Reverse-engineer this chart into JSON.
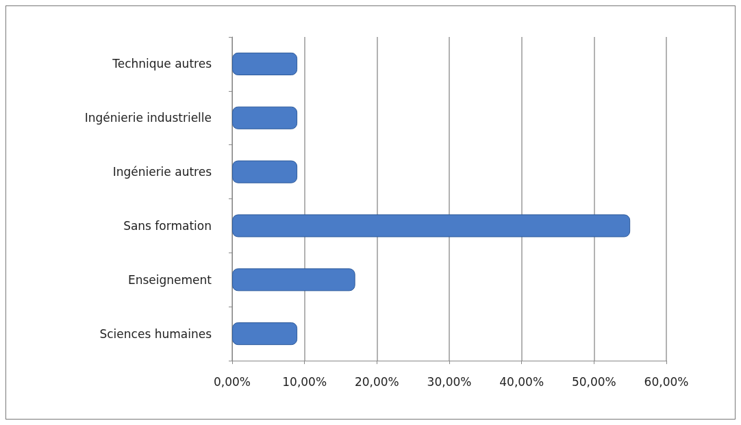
{
  "chart_data": {
    "type": "bar",
    "orientation": "horizontal",
    "categories": [
      "Technique autres",
      "Ingénierie industrielle",
      "Ingénierie autres",
      "Sans formation",
      "Enseignement",
      "Sciences humaines"
    ],
    "values": [
      9,
      9,
      9,
      55,
      17,
      9
    ],
    "color": "#4a7cc7",
    "xlim": [
      0,
      60
    ],
    "xticks": [
      {
        "value": 0,
        "label": "0,00%"
      },
      {
        "value": 10,
        "label": "10,00%"
      },
      {
        "value": 20,
        "label": "20,00%"
      },
      {
        "value": 30,
        "label": "30,00%"
      },
      {
        "value": 40,
        "label": "40,00%"
      },
      {
        "value": 50,
        "label": "50,00%"
      },
      {
        "value": 60,
        "label": "60,00%"
      }
    ],
    "grid": "x"
  }
}
